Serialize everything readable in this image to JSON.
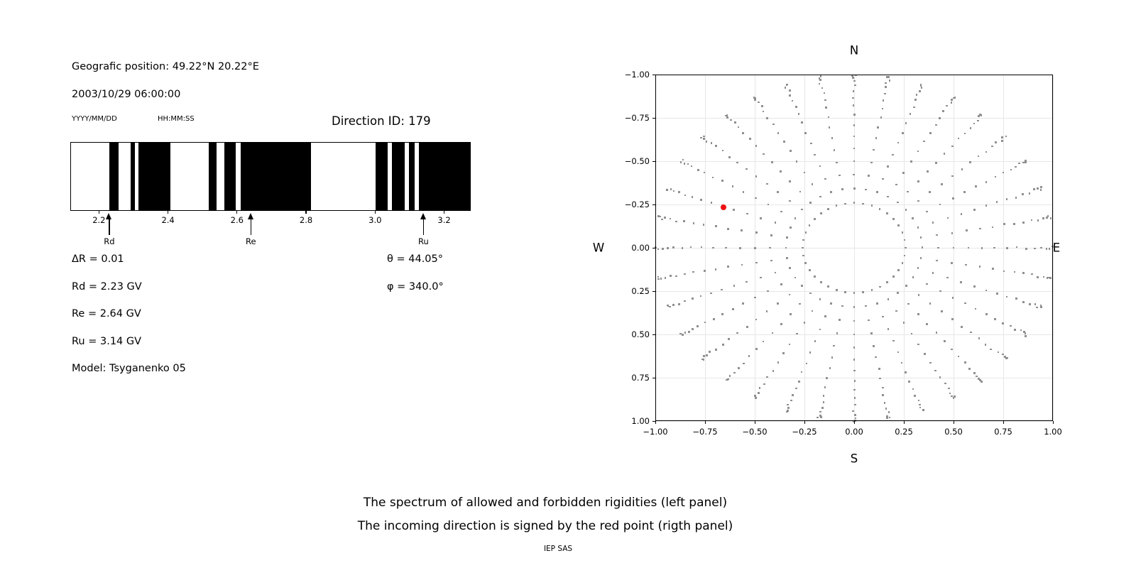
{
  "header": {
    "geo_position": "Geografic position: 49.22°N 20.22°E",
    "datetime": "2003/10/29 06:00:00",
    "date_format_label": "YYYY/MM/DD",
    "time_format_label": "HH:MM:SS",
    "direction_id_label": "Direction ID: 179"
  },
  "stats": {
    "delta_r": "ΔR = 0.01",
    "rd": "Rd = 2.23 GV",
    "re": "Re = 2.64 GV",
    "ru": "Ru = 3.14 GV",
    "model": "Model: Tsyganenko 05",
    "theta": "θ = 44.05°",
    "phi": "φ = 340.0°"
  },
  "caption": {
    "line1": "The spectrum of allowed and forbidden rigidities (left panel)",
    "line2": "The incoming direction is signed by the red point (rigth panel)",
    "credit": "IEP SAS"
  },
  "chart_data": [
    {
      "type": "bar",
      "name": "rigidity-spectrum",
      "description": "Barcode of allowed (black) and forbidden (white) rigidities between Rd and Ru",
      "xlim": [
        2.117,
        3.277
      ],
      "xticks": [
        2.2,
        2.4,
        2.6,
        2.8,
        3.0,
        3.2
      ],
      "xtick_labels": [
        "2.2",
        "2.4",
        "2.6",
        "2.8",
        "3.0",
        "3.2"
      ],
      "black_intervals_gv": [
        [
          2.228,
          2.255
        ],
        [
          2.291,
          2.303
        ],
        [
          2.313,
          2.406
        ],
        [
          2.518,
          2.541
        ],
        [
          2.563,
          2.596
        ],
        [
          2.611,
          2.815
        ],
        [
          3.003,
          3.037
        ],
        [
          3.05,
          3.087
        ],
        [
          3.1,
          3.115
        ],
        [
          3.128,
          3.277
        ]
      ],
      "markers": [
        {
          "label": "Rd",
          "value_gv": 2.23
        },
        {
          "label": "Re",
          "value_gv": 2.64
        },
        {
          "label": "Ru",
          "value_gv": 3.14
        }
      ],
      "bar_color": "#000000",
      "background": "#ffffff"
    },
    {
      "type": "scatter",
      "name": "incoming-direction-skymap",
      "description": "Fisheye sky map of direction grid dots; red point marks the incoming direction",
      "xlim": [
        -1,
        1
      ],
      "ylim": [
        -1,
        1
      ],
      "tick_values": [
        -1,
        -0.75,
        -0.5,
        -0.25,
        0,
        0.25,
        0.5,
        0.75,
        1
      ],
      "tick_labels": [
        "−1.00",
        "−0.75",
        "−0.50",
        "−0.25",
        "0.00",
        "0.25",
        "0.50",
        "0.75",
        "1.00"
      ],
      "grid": true,
      "compass_labels": {
        "north": "N",
        "south": "S",
        "east": "E",
        "west": "W"
      },
      "direction_grid": {
        "azimuth_start_deg": 0,
        "azimuth_step_deg": 10,
        "azimuth_count": 36,
        "zenith_min_deg": 15,
        "zenith_max_deg": 90,
        "zenith_step_deg": 5,
        "radial_projection": "sin(zenith)"
      },
      "red_point": {
        "x": -0.657,
        "y": 0.233
      },
      "dot_color": "#8a8a8a",
      "red_point_color": "#ee1111",
      "grid_color": "#e7e7e7"
    }
  ]
}
